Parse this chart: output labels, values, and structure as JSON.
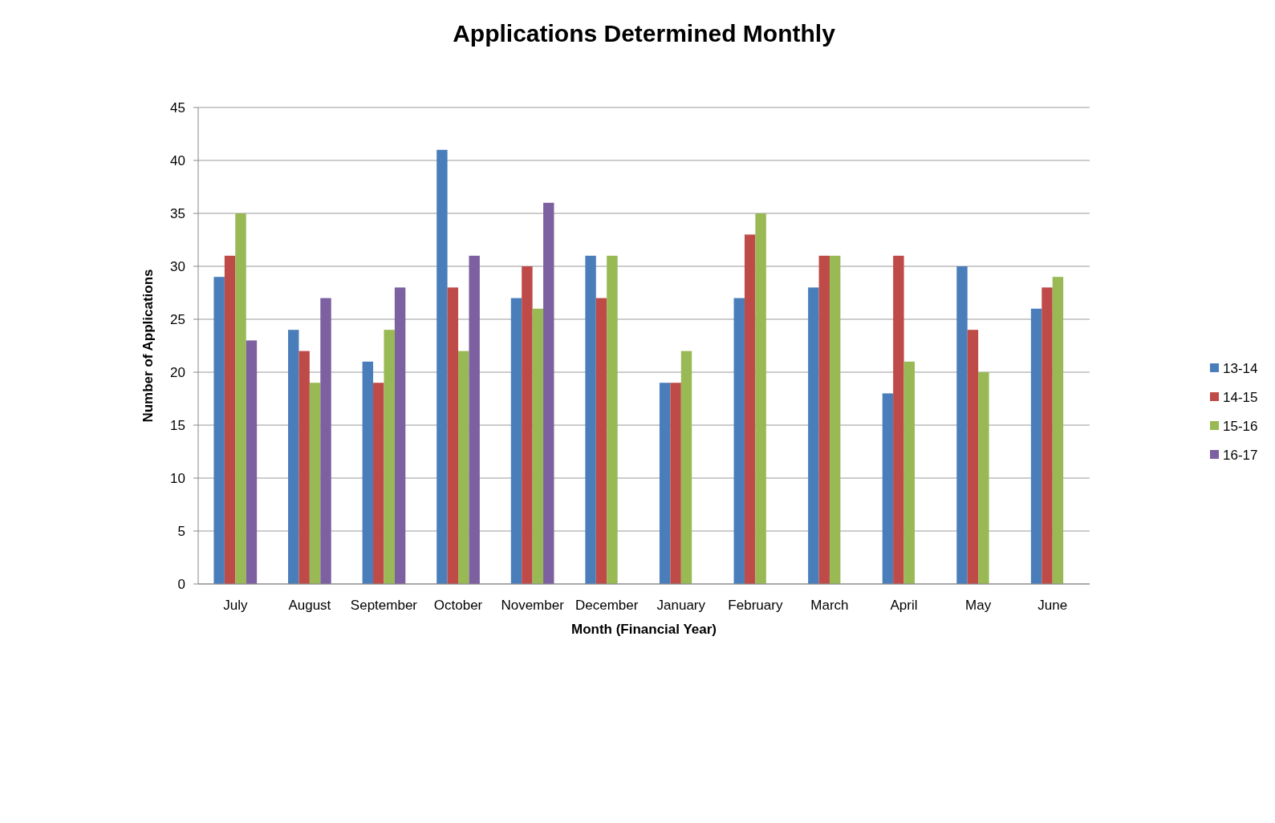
{
  "chart_data": {
    "type": "bar",
    "title": "Applications Determined Monthly",
    "xlabel": "Month (Financial Year)",
    "ylabel": "Number of Applications",
    "categories": [
      "July",
      "August",
      "September",
      "October",
      "November",
      "December",
      "January",
      "February",
      "March",
      "April",
      "May",
      "June"
    ],
    "series": [
      {
        "name": "13-14",
        "color": "#4a7ebb",
        "values": [
          29,
          24,
          21,
          41,
          27,
          31,
          19,
          27,
          28,
          18,
          30,
          26
        ]
      },
      {
        "name": "14-15",
        "color": "#be4b48",
        "values": [
          31,
          22,
          19,
          28,
          30,
          27,
          19,
          33,
          31,
          31,
          24,
          28
        ]
      },
      {
        "name": "15-16",
        "color": "#98b954",
        "values": [
          35,
          19,
          24,
          22,
          26,
          31,
          22,
          35,
          31,
          21,
          20,
          29
        ]
      },
      {
        "name": "16-17",
        "color": "#7d60a0",
        "values": [
          23,
          27,
          28,
          31,
          36,
          null,
          null,
          null,
          null,
          null,
          null,
          null
        ]
      }
    ],
    "ylim": [
      0,
      45
    ],
    "yticks": [
      0,
      5,
      10,
      15,
      20,
      25,
      30,
      35,
      40,
      45
    ],
    "grid": "y",
    "legend": "right"
  }
}
